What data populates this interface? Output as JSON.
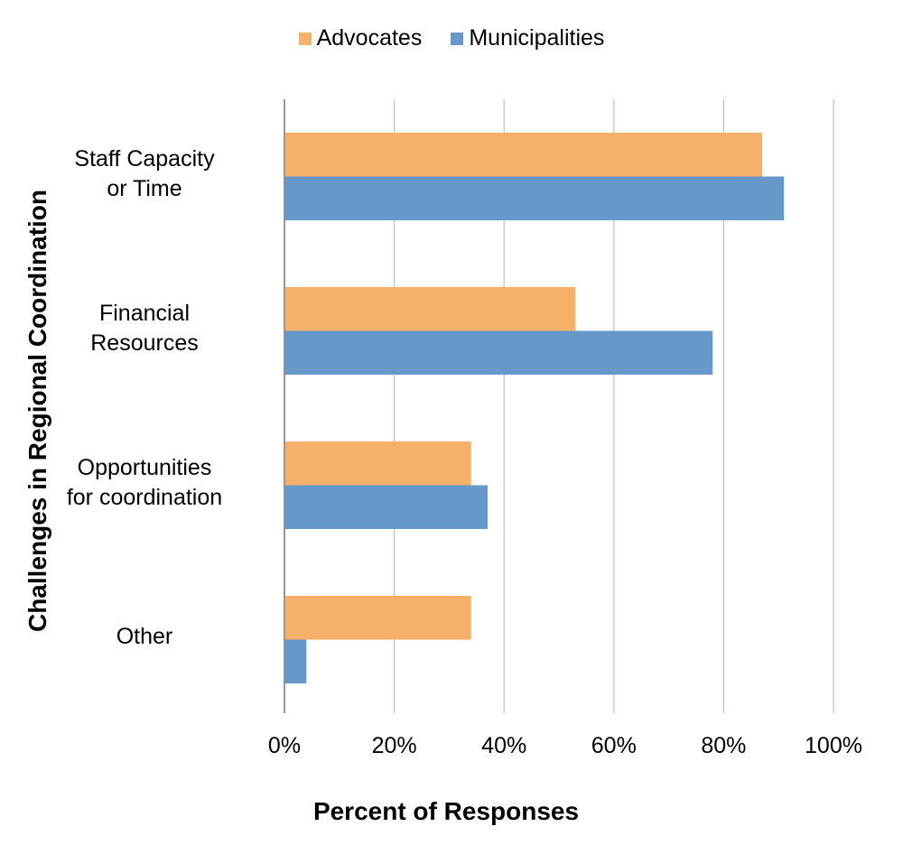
{
  "chart_data": {
    "type": "bar",
    "orientation": "horizontal",
    "title": "",
    "xlabel": "Percent of Responses",
    "ylabel": "Challenges in Regional Coordination",
    "categories": [
      [
        "Staff Capacity",
        "or Time"
      ],
      [
        "Financial",
        "Resources"
      ],
      [
        "Opportunities",
        "for coordination"
      ],
      [
        "Other"
      ]
    ],
    "series": [
      {
        "name": "Advocates",
        "color": "#F5B06A",
        "values": [
          87,
          53,
          34,
          34
        ]
      },
      {
        "name": "Municipalities",
        "color": "#6699C9",
        "values": [
          91,
          78,
          37,
          4
        ]
      }
    ],
    "xlim": [
      0,
      100
    ],
    "xticks": [
      "0%",
      "20%",
      "40%",
      "60%",
      "80%",
      "100%"
    ],
    "xtick_values": [
      0,
      20,
      40,
      60,
      80,
      100
    ],
    "grid": true,
    "legend_position": "top-center"
  }
}
